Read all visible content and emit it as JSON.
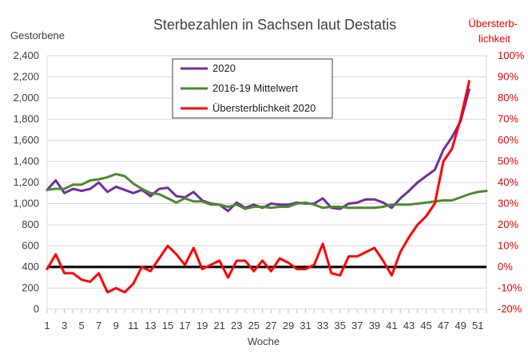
{
  "chart_data": {
    "type": "line",
    "title": "Sterbezahlen in Sachsen laut Destatis",
    "xlabel": "Woche",
    "ylabel_left": "Gestorbene",
    "ylabel_right": "Übersterb-lichkeit",
    "ylabel_right_lines": [
      "Übersterb-",
      "lichkeit"
    ],
    "ylim_left": [
      0,
      2400
    ],
    "ylim_right": [
      -20,
      100
    ],
    "xlim": [
      1,
      52
    ],
    "yticks_left": [
      "0",
      "200",
      "400",
      "600",
      "800",
      "1,000",
      "1,200",
      "1,400",
      "1,600",
      "1,800",
      "2,000",
      "2,200",
      "2,400"
    ],
    "yticks_right": [
      "-20%",
      "-10%",
      "0%",
      "10%",
      "20%",
      "30%",
      "40%",
      "50%",
      "60%",
      "70%",
      "80%",
      "90%",
      "100%"
    ],
    "xticks": [
      "1",
      "3",
      "5",
      "7",
      "9",
      "11",
      "13",
      "15",
      "17",
      "19",
      "21",
      "23",
      "25",
      "27",
      "29",
      "31",
      "33",
      "35",
      "37",
      "39",
      "41",
      "43",
      "45",
      "47",
      "49",
      "51"
    ],
    "grid": true,
    "legend_placement": "top-left",
    "reference_line": {
      "axis": "right",
      "value": 0,
      "color": "#000000"
    },
    "series": [
      {
        "name": "2020",
        "axis": "left",
        "color": "#7030a0",
        "x": [
          1,
          2,
          3,
          4,
          5,
          6,
          7,
          8,
          9,
          10,
          11,
          12,
          13,
          14,
          15,
          16,
          17,
          18,
          19,
          20,
          21,
          22,
          23,
          24,
          25,
          26,
          27,
          28,
          29,
          30,
          31,
          32,
          33,
          34,
          35,
          36,
          37,
          38,
          39,
          40,
          41,
          42,
          43,
          44,
          45,
          46,
          47,
          48,
          49,
          50
        ],
        "values": [
          1130,
          1220,
          1100,
          1140,
          1120,
          1140,
          1200,
          1110,
          1160,
          1130,
          1100,
          1130,
          1070,
          1140,
          1150,
          1070,
          1060,
          1110,
          1030,
          1000,
          990,
          930,
          1010,
          960,
          990,
          960,
          1000,
          990,
          990,
          1010,
          1000,
          1000,
          1050,
          960,
          950,
          1000,
          1010,
          1040,
          1040,
          1010,
          960,
          1050,
          1120,
          1200,
          1260,
          1320,
          1510,
          1630,
          1780,
          2080
        ]
      },
      {
        "name": "2016-19 Mittelwert",
        "axis": "left",
        "color": "#4e8a2e",
        "x": [
          1,
          2,
          3,
          4,
          5,
          6,
          7,
          8,
          9,
          10,
          11,
          12,
          13,
          14,
          15,
          16,
          17,
          18,
          19,
          20,
          21,
          22,
          23,
          24,
          25,
          26,
          27,
          28,
          29,
          30,
          31,
          32,
          33,
          34,
          35,
          36,
          37,
          38,
          39,
          40,
          41,
          42,
          43,
          44,
          45,
          46,
          47,
          48,
          49,
          50,
          51,
          52
        ],
        "values": [
          1130,
          1140,
          1140,
          1180,
          1180,
          1220,
          1230,
          1250,
          1280,
          1260,
          1190,
          1140,
          1100,
          1090,
          1050,
          1010,
          1050,
          1020,
          1020,
          990,
          990,
          970,
          990,
          950,
          970,
          970,
          960,
          970,
          970,
          1000,
          1010,
          990,
          960,
          970,
          970,
          960,
          960,
          960,
          960,
          970,
          990,
          990,
          990,
          1000,
          1010,
          1020,
          1030,
          1030,
          1060,
          1090,
          1110,
          1120
        ]
      },
      {
        "name": "Übersterblichkeit 2020",
        "axis": "right",
        "color": "#ff0000",
        "x": [
          1,
          2,
          3,
          4,
          5,
          6,
          7,
          8,
          9,
          10,
          11,
          12,
          13,
          14,
          15,
          16,
          17,
          18,
          19,
          20,
          21,
          22,
          23,
          24,
          25,
          26,
          27,
          28,
          29,
          30,
          31,
          32,
          33,
          34,
          35,
          36,
          37,
          38,
          39,
          40,
          41,
          42,
          43,
          44,
          45,
          46,
          47,
          48,
          49,
          50
        ],
        "values": [
          -1,
          6,
          -3,
          -3,
          -6,
          -7,
          -3,
          -12,
          -10,
          -12,
          -8,
          0,
          -2,
          4,
          10,
          6,
          1,
          9,
          -1,
          1,
          3,
          -5,
          3,
          3,
          -2,
          3,
          -2,
          4,
          2,
          -1,
          -1,
          1,
          11,
          -3,
          -4,
          5,
          5,
          7,
          9,
          3,
          -4,
          7,
          14,
          20,
          24,
          30,
          50,
          56,
          70,
          88
        ]
      }
    ]
  }
}
